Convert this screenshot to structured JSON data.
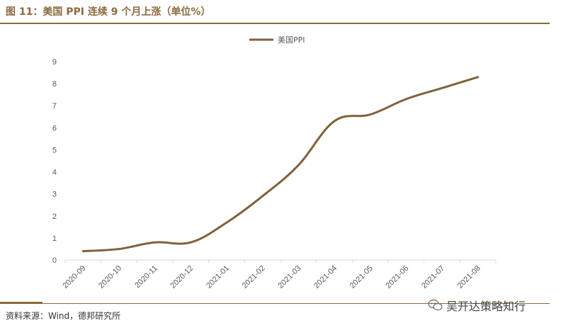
{
  "header": {
    "title": "图 11：美国 PPI 连续 9 个月上涨（单位%）"
  },
  "footer": {
    "source": "资料来源：Wind，德邦研究所"
  },
  "watermark": {
    "text": "吴开达策略知行"
  },
  "colors": {
    "accent": "#8B6A3E",
    "line": "#7F6239",
    "axis_text": "#595959",
    "axis_line": "#D9D9D9"
  },
  "chart_data": {
    "type": "line",
    "categories": [
      "2020-09",
      "2020-10",
      "2020-11",
      "2020-12",
      "2021-01",
      "2021-02",
      "2021-03",
      "2021-04",
      "2021-05",
      "2021-06",
      "2021-07",
      "2021-08"
    ],
    "series": [
      {
        "name": "美国PPI",
        "values": [
          0.4,
          0.5,
          0.8,
          0.8,
          1.7,
          2.9,
          4.3,
          6.3,
          6.6,
          7.3,
          7.8,
          8.3
        ]
      }
    ],
    "ylim": [
      0,
      9
    ],
    "yticks": [
      "0",
      "1",
      "2",
      "3",
      "4",
      "5",
      "6",
      "7",
      "8",
      "9"
    ],
    "title": "",
    "xlabel": "",
    "ylabel": "",
    "legend": "top-center",
    "grid": false
  }
}
